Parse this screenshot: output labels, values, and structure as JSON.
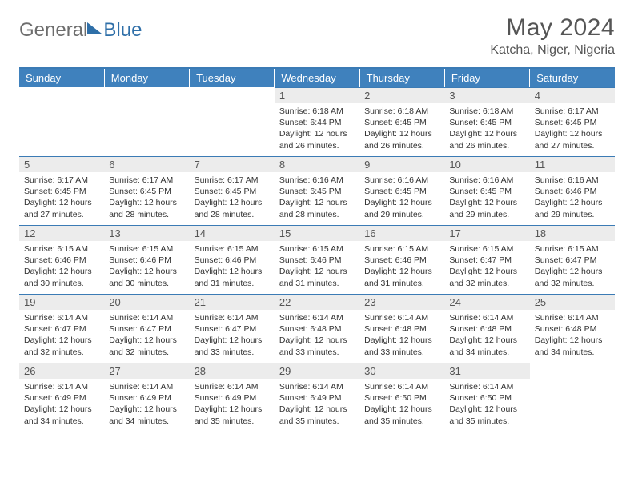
{
  "brand": {
    "part1": "General",
    "part2": "Blue"
  },
  "title": "May 2024",
  "location": "Katcha, Niger, Nigeria",
  "colors": {
    "header_bg": "#3f81bd",
    "header_text": "#ffffff",
    "daynum_bg": "#ececec",
    "border": "#3b7bb5",
    "text": "#333333",
    "title_text": "#555555"
  },
  "font": {
    "title_size": 30,
    "location_size": 16,
    "dayhead_size": 13,
    "cell_size": 10.5
  },
  "day_headers": [
    "Sunday",
    "Monday",
    "Tuesday",
    "Wednesday",
    "Thursday",
    "Friday",
    "Saturday"
  ],
  "weeks": [
    [
      null,
      null,
      null,
      {
        "n": "1",
        "sr": "6:18 AM",
        "ss": "6:44 PM",
        "dl": "12 hours and 26 minutes."
      },
      {
        "n": "2",
        "sr": "6:18 AM",
        "ss": "6:45 PM",
        "dl": "12 hours and 26 minutes."
      },
      {
        "n": "3",
        "sr": "6:18 AM",
        "ss": "6:45 PM",
        "dl": "12 hours and 26 minutes."
      },
      {
        "n": "4",
        "sr": "6:17 AM",
        "ss": "6:45 PM",
        "dl": "12 hours and 27 minutes."
      }
    ],
    [
      {
        "n": "5",
        "sr": "6:17 AM",
        "ss": "6:45 PM",
        "dl": "12 hours and 27 minutes."
      },
      {
        "n": "6",
        "sr": "6:17 AM",
        "ss": "6:45 PM",
        "dl": "12 hours and 28 minutes."
      },
      {
        "n": "7",
        "sr": "6:17 AM",
        "ss": "6:45 PM",
        "dl": "12 hours and 28 minutes."
      },
      {
        "n": "8",
        "sr": "6:16 AM",
        "ss": "6:45 PM",
        "dl": "12 hours and 28 minutes."
      },
      {
        "n": "9",
        "sr": "6:16 AM",
        "ss": "6:45 PM",
        "dl": "12 hours and 29 minutes."
      },
      {
        "n": "10",
        "sr": "6:16 AM",
        "ss": "6:45 PM",
        "dl": "12 hours and 29 minutes."
      },
      {
        "n": "11",
        "sr": "6:16 AM",
        "ss": "6:46 PM",
        "dl": "12 hours and 29 minutes."
      }
    ],
    [
      {
        "n": "12",
        "sr": "6:15 AM",
        "ss": "6:46 PM",
        "dl": "12 hours and 30 minutes."
      },
      {
        "n": "13",
        "sr": "6:15 AM",
        "ss": "6:46 PM",
        "dl": "12 hours and 30 minutes."
      },
      {
        "n": "14",
        "sr": "6:15 AM",
        "ss": "6:46 PM",
        "dl": "12 hours and 31 minutes."
      },
      {
        "n": "15",
        "sr": "6:15 AM",
        "ss": "6:46 PM",
        "dl": "12 hours and 31 minutes."
      },
      {
        "n": "16",
        "sr": "6:15 AM",
        "ss": "6:46 PM",
        "dl": "12 hours and 31 minutes."
      },
      {
        "n": "17",
        "sr": "6:15 AM",
        "ss": "6:47 PM",
        "dl": "12 hours and 32 minutes."
      },
      {
        "n": "18",
        "sr": "6:15 AM",
        "ss": "6:47 PM",
        "dl": "12 hours and 32 minutes."
      }
    ],
    [
      {
        "n": "19",
        "sr": "6:14 AM",
        "ss": "6:47 PM",
        "dl": "12 hours and 32 minutes."
      },
      {
        "n": "20",
        "sr": "6:14 AM",
        "ss": "6:47 PM",
        "dl": "12 hours and 32 minutes."
      },
      {
        "n": "21",
        "sr": "6:14 AM",
        "ss": "6:47 PM",
        "dl": "12 hours and 33 minutes."
      },
      {
        "n": "22",
        "sr": "6:14 AM",
        "ss": "6:48 PM",
        "dl": "12 hours and 33 minutes."
      },
      {
        "n": "23",
        "sr": "6:14 AM",
        "ss": "6:48 PM",
        "dl": "12 hours and 33 minutes."
      },
      {
        "n": "24",
        "sr": "6:14 AM",
        "ss": "6:48 PM",
        "dl": "12 hours and 34 minutes."
      },
      {
        "n": "25",
        "sr": "6:14 AM",
        "ss": "6:48 PM",
        "dl": "12 hours and 34 minutes."
      }
    ],
    [
      {
        "n": "26",
        "sr": "6:14 AM",
        "ss": "6:49 PM",
        "dl": "12 hours and 34 minutes."
      },
      {
        "n": "27",
        "sr": "6:14 AM",
        "ss": "6:49 PM",
        "dl": "12 hours and 34 minutes."
      },
      {
        "n": "28",
        "sr": "6:14 AM",
        "ss": "6:49 PM",
        "dl": "12 hours and 35 minutes."
      },
      {
        "n": "29",
        "sr": "6:14 AM",
        "ss": "6:49 PM",
        "dl": "12 hours and 35 minutes."
      },
      {
        "n": "30",
        "sr": "6:14 AM",
        "ss": "6:50 PM",
        "dl": "12 hours and 35 minutes."
      },
      {
        "n": "31",
        "sr": "6:14 AM",
        "ss": "6:50 PM",
        "dl": "12 hours and 35 minutes."
      },
      null
    ]
  ],
  "labels": {
    "sunrise": "Sunrise:",
    "sunset": "Sunset:",
    "daylight": "Daylight:"
  }
}
